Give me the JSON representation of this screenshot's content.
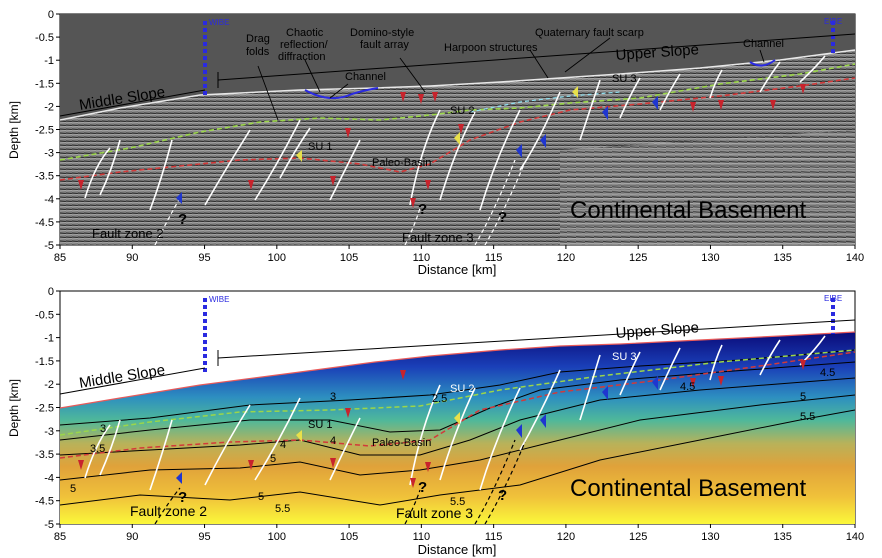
{
  "panels": [
    {
      "id": "seismic",
      "ylabel": "Depth [km]",
      "xlabel": "Distance [km]",
      "xticks": [
        "85",
        "90",
        "95",
        "100",
        "105",
        "110",
        "115",
        "120",
        "125",
        "130",
        "135",
        "140"
      ],
      "yticks": [
        "0",
        "-0.5",
        "-1",
        "-1.5",
        "-2",
        "-2.5",
        "-3",
        "-3.5",
        "-4",
        "-4.5",
        "-5"
      ],
      "labels": {
        "wibe": "WIBE",
        "eibe": "EIBE",
        "middle_slope": "Middle Slope",
        "upper_slope": "Upper Slope",
        "drag_folds_1": "Drag",
        "drag_folds_2": "folds",
        "chaotic_1": "Chaotic",
        "chaotic_2": "reflection/",
        "chaotic_3": "diffraction",
        "domino_1": "Domino-style",
        "domino_2": "fault array",
        "channel_1": "Channel",
        "quaternary": "Quaternary fault scarp",
        "harpoon": "Harpoon structures",
        "channel_2": "Channel",
        "su1": "SU 1",
        "su2": "SU 2",
        "su3": "SU 3",
        "paleo_basin": "Paleo-Basin",
        "basement": "Continental Basement",
        "fault_zone_2": "Fault zone 2",
        "fault_zone_3": "Fault zone 3",
        "q": "?"
      }
    },
    {
      "id": "velocity",
      "ylabel": "Depth [km]",
      "xlabel": "Distance [km]",
      "xticks": [
        "85",
        "90",
        "95",
        "100",
        "105",
        "110",
        "115",
        "120",
        "125",
        "130",
        "135",
        "140"
      ],
      "yticks": [
        "0",
        "-0.5",
        "-1",
        "-1.5",
        "-2",
        "-2.5",
        "-3",
        "-3.5",
        "-4",
        "-4.5",
        "-5"
      ],
      "contours": [
        "2.5",
        "3",
        "3.5",
        "4",
        "4.5",
        "5",
        "5.5"
      ],
      "labels": {
        "wibe": "WIBE",
        "eibe": "EIBE",
        "middle_slope": "Middle Slope",
        "upper_slope": "Upper Slope",
        "su1": "SU 1",
        "su2": "SU 2",
        "su3": "SU 3",
        "paleo_basin": "Paleo-Basin",
        "basement": "Continental Basement",
        "fault_zone_2": "Fault zone 2",
        "fault_zone_3": "Fault zone 3",
        "q": "?"
      }
    }
  ],
  "colors": {
    "marker": "#2a2ae0",
    "horizon_green": "#9bd64a",
    "horizon_red": "#d23a3a",
    "fault": "#ffffff",
    "arrow_red": "#c8232c",
    "arrow_blue": "#1f36d0",
    "arrow_yellow": "#e8e04a"
  }
}
